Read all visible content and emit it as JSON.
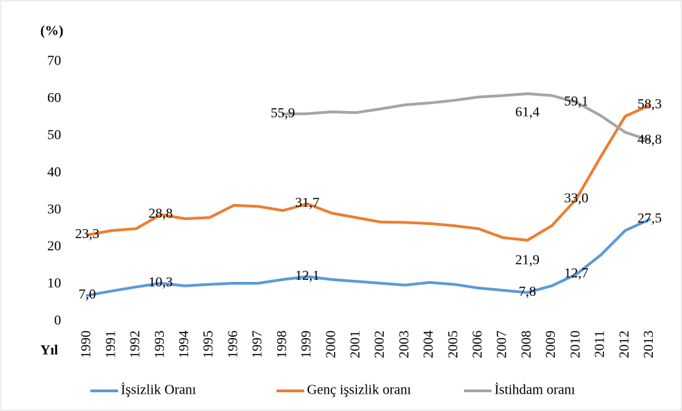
{
  "chart_data": {
    "type": "line",
    "ylabel": "(%)",
    "xlabel": "Yıl",
    "categories": [
      "1990",
      "1991",
      "1992",
      "1993",
      "1994",
      "1995",
      "1996",
      "1997",
      "1998",
      "1999",
      "2000",
      "2001",
      "2002",
      "2003",
      "2004",
      "2005",
      "2006",
      "2007",
      "2008",
      "2009",
      "2010",
      "2011",
      "2012",
      "2013"
    ],
    "series": [
      {
        "name": "İşsizlik Oranı",
        "color": "#5b9bd5",
        "values": [
          7.0,
          8.2,
          9.3,
          10.3,
          9.6,
          10.0,
          10.3,
          10.3,
          11.3,
          12.1,
          11.3,
          10.8,
          10.3,
          9.8,
          10.5,
          10.0,
          9.0,
          8.4,
          7.8,
          9.6,
          12.7,
          17.9,
          24.5,
          27.5
        ],
        "value_labels": [
          "7,0",
          null,
          null,
          "10,3",
          null,
          null,
          null,
          null,
          null,
          "12,1",
          null,
          null,
          null,
          null,
          null,
          null,
          null,
          null,
          "7,8",
          null,
          "12,7",
          null,
          null,
          "27,5"
        ]
      },
      {
        "name": "Genç işsizlik oranı",
        "color": "#ed7d31",
        "values": [
          23.3,
          24.5,
          25.0,
          28.8,
          27.7,
          28.0,
          31.3,
          31.0,
          29.9,
          31.7,
          29.2,
          28.0,
          26.8,
          26.7,
          26.4,
          25.8,
          25.0,
          22.6,
          21.9,
          25.8,
          33.0,
          44.4,
          55.3,
          58.3
        ],
        "value_labels": [
          "23,3",
          null,
          null,
          "28,8",
          null,
          null,
          null,
          null,
          null,
          "31,7",
          null,
          null,
          null,
          null,
          null,
          null,
          null,
          null,
          "21,9",
          null,
          "33,0",
          null,
          null,
          "58,3"
        ]
      },
      {
        "name": "İstihdam oranı",
        "color": "#a5a5a5",
        "values": [
          null,
          null,
          null,
          null,
          null,
          null,
          null,
          null,
          55.9,
          56.0,
          56.5,
          56.3,
          57.3,
          58.4,
          58.9,
          59.6,
          60.5,
          60.9,
          61.4,
          60.9,
          59.1,
          55.5,
          51.0,
          48.8
        ],
        "value_labels": [
          null,
          null,
          null,
          null,
          null,
          null,
          null,
          null,
          "55,9",
          null,
          null,
          null,
          null,
          null,
          null,
          null,
          null,
          null,
          "61,4",
          null,
          "59,1",
          null,
          null,
          "48,8"
        ]
      }
    ],
    "ylim": [
      0,
      70
    ],
    "yticks": [
      0,
      10,
      20,
      30,
      40,
      50,
      60,
      70
    ],
    "grid": false
  }
}
